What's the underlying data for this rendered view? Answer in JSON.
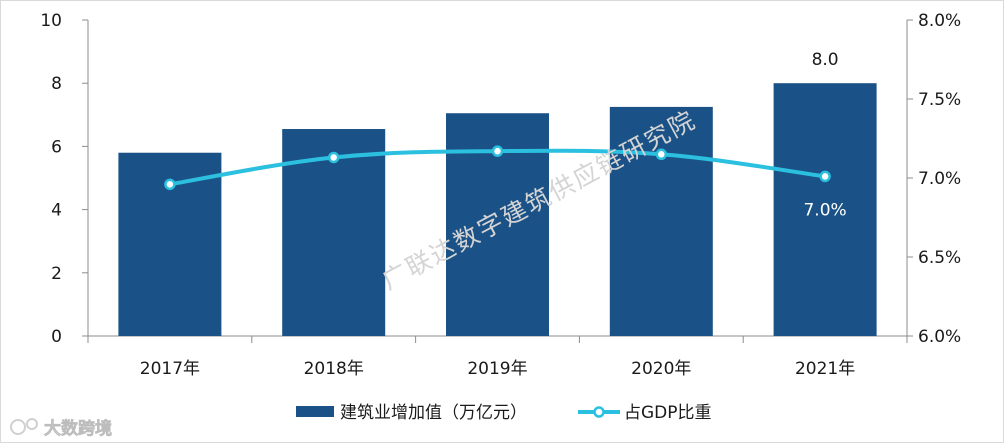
{
  "chart_data": {
    "type": "bar",
    "categories": [
      "2017年",
      "2018年",
      "2019年",
      "2020年",
      "2021年"
    ],
    "series": [
      {
        "name": "建筑业增加值（万亿元）",
        "type": "bar",
        "axis": "left",
        "color": "#1a5287",
        "values": [
          5.8,
          6.55,
          7.05,
          7.25,
          8.0
        ]
      },
      {
        "name": "占GDP比重",
        "type": "line",
        "axis": "right",
        "color": "#2cc0e0",
        "values": [
          6.96,
          7.13,
          7.17,
          7.15,
          7.01
        ]
      }
    ],
    "left_axis": {
      "min": 0,
      "max": 10,
      "ticks": [
        "0",
        "2",
        "4",
        "6",
        "8",
        "10"
      ]
    },
    "right_axis": {
      "min": 6.0,
      "max": 8.0,
      "ticks": [
        "6.0%",
        "6.5%",
        "7.0%",
        "7.5%",
        "8.0%"
      ]
    },
    "data_labels": [
      {
        "series": 0,
        "index": 4,
        "text": "8.0"
      },
      {
        "series": 1,
        "index": 4,
        "text": "7.0%"
      }
    ],
    "legend": {
      "position": "bottom",
      "items": [
        "建筑业增加值（万亿元）",
        "占GDP比重"
      ]
    },
    "watermark": "广联达数字建筑供应链研究院",
    "grid": false
  },
  "source_mark": "大数跨境"
}
